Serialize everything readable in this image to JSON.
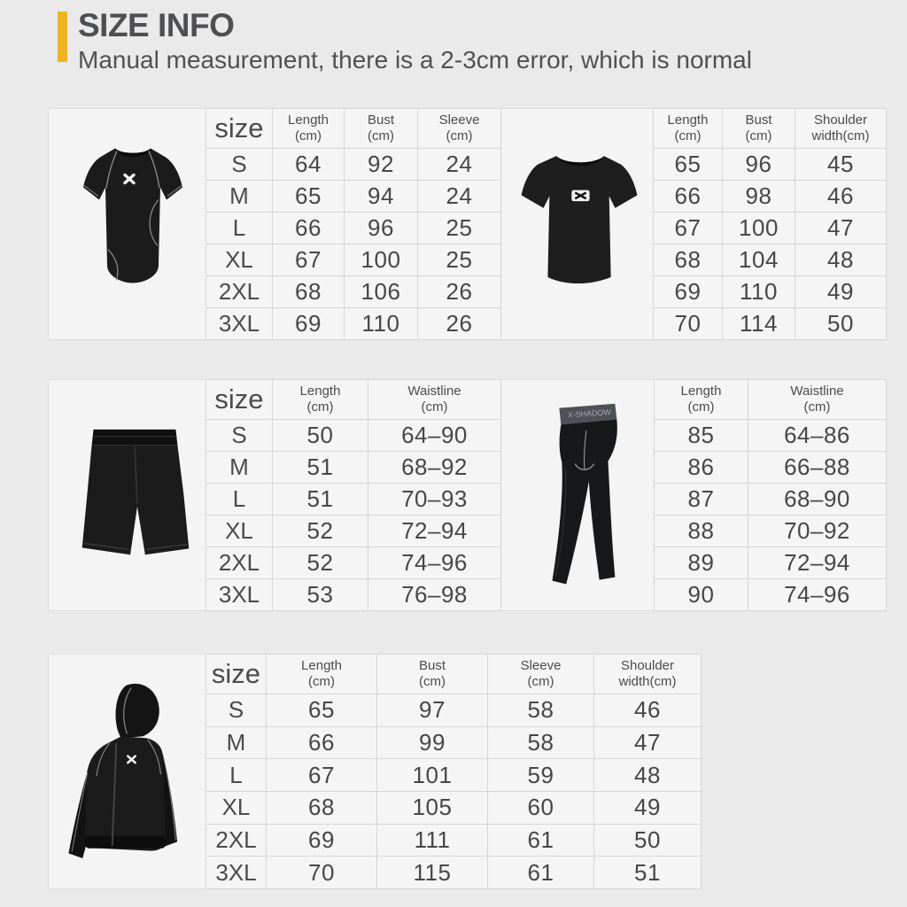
{
  "header": {
    "title": "SIZE INFO",
    "subtitle": "Manual measurement, there is a 2-3cm error, which is normal",
    "accent_color": "#EFB420"
  },
  "products": {
    "compression_shirt": "short-sleeve-compression-shirt",
    "tshirt": "loose-fit-tshirt",
    "shorts": "sport-shorts",
    "leggings": "compression-leggings",
    "hoodie": "zip-up-hoodie",
    "logo_glyph": "X",
    "leggings_waistband_text": "X-SHADOW"
  },
  "tables": [
    {
      "id": "top-shirt",
      "corner": "size",
      "columns": [
        [
          "Length",
          "(cm)"
        ],
        [
          "Bust",
          "(cm)"
        ],
        [
          "Sleeve",
          "(cm)"
        ]
      ],
      "sizes": [
        "S",
        "M",
        "L",
        "XL",
        "2XL",
        "3XL"
      ],
      "rows": [
        [
          "64",
          "92",
          "24"
        ],
        [
          "65",
          "94",
          "24"
        ],
        [
          "66",
          "96",
          "25"
        ],
        [
          "67",
          "100",
          "25"
        ],
        [
          "68",
          "106",
          "26"
        ],
        [
          "69",
          "110",
          "26"
        ]
      ]
    },
    {
      "id": "top-tshirt",
      "columns": [
        [
          "Length",
          "(cm)"
        ],
        [
          "Bust",
          "(cm)"
        ],
        [
          "Shoulder",
          "width(cm)"
        ]
      ],
      "rows": [
        [
          "65",
          "96",
          "45"
        ],
        [
          "66",
          "98",
          "46"
        ],
        [
          "67",
          "100",
          "47"
        ],
        [
          "68",
          "104",
          "48"
        ],
        [
          "69",
          "110",
          "49"
        ],
        [
          "70",
          "114",
          "50"
        ]
      ]
    },
    {
      "id": "shorts",
      "corner": "size",
      "columns": [
        [
          "Length",
          "(cm)"
        ],
        [
          "Waistline",
          "(cm)"
        ]
      ],
      "sizes": [
        "S",
        "M",
        "L",
        "XL",
        "2XL",
        "3XL"
      ],
      "rows": [
        [
          "50",
          "64–90"
        ],
        [
          "51",
          "68–92"
        ],
        [
          "51",
          "70–93"
        ],
        [
          "52",
          "72–94"
        ],
        [
          "52",
          "74–96"
        ],
        [
          "53",
          "76–98"
        ]
      ]
    },
    {
      "id": "leggings",
      "columns": [
        [
          "Length",
          "(cm)"
        ],
        [
          "Waistline",
          "(cm)"
        ]
      ],
      "rows": [
        [
          "85",
          "64–86"
        ],
        [
          "86",
          "66–88"
        ],
        [
          "87",
          "68–90"
        ],
        [
          "88",
          "70–92"
        ],
        [
          "89",
          "72–94"
        ],
        [
          "90",
          "74–96"
        ]
      ]
    },
    {
      "id": "hoodie",
      "corner": "size",
      "columns": [
        [
          "Length",
          "(cm)"
        ],
        [
          "Bust",
          "(cm)"
        ],
        [
          "Sleeve",
          "(cm)"
        ],
        [
          "Shoulder",
          "width(cm)"
        ]
      ],
      "sizes": [
        "S",
        "M",
        "L",
        "XL",
        "2XL",
        "3XL"
      ],
      "rows": [
        [
          "65",
          "97",
          "58",
          "46"
        ],
        [
          "66",
          "99",
          "58",
          "47"
        ],
        [
          "67",
          "101",
          "59",
          "48"
        ],
        [
          "68",
          "105",
          "60",
          "49"
        ],
        [
          "69",
          "111",
          "61",
          "50"
        ],
        [
          "70",
          "115",
          "61",
          "51"
        ]
      ]
    }
  ]
}
